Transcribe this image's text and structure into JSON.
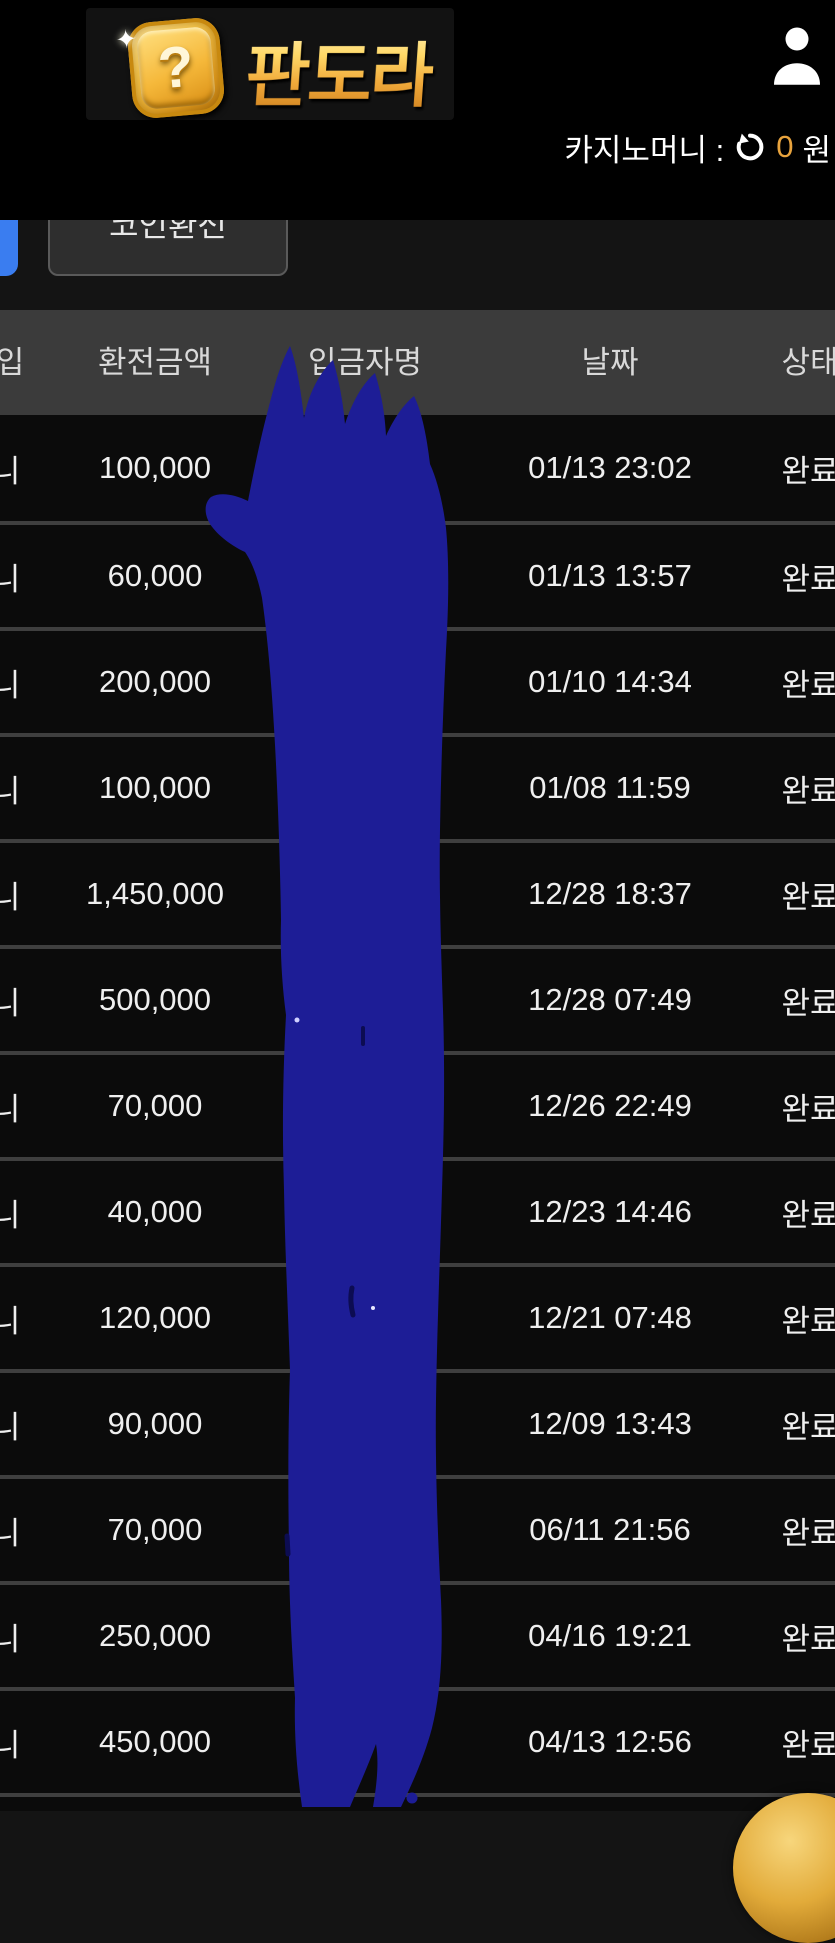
{
  "header": {
    "logo_text": "판도라",
    "logo_question_mark": "?",
    "balance": {
      "label": "카지노머니 :",
      "value": "0",
      "unit": "원"
    }
  },
  "toolbar": {
    "exchange_button_label": "코인환전"
  },
  "table": {
    "columns": {
      "type": "입",
      "amount": "환전금액",
      "depositor": "입금자명",
      "date": "날짜",
      "status": "상태"
    },
    "rows": [
      {
        "type": "니",
        "amount": "100,000",
        "depositor": "",
        "date": "01/13 23:02",
        "status": "완료"
      },
      {
        "type": "니",
        "amount": "60,000",
        "depositor": "",
        "date": "01/13 13:57",
        "status": "완료"
      },
      {
        "type": "니",
        "amount": "200,000",
        "depositor": "",
        "date": "01/10 14:34",
        "status": "완료"
      },
      {
        "type": "니",
        "amount": "100,000",
        "depositor": "",
        "date": "01/08 11:59",
        "status": "완료"
      },
      {
        "type": "니",
        "amount": "1,450,000",
        "depositor": "",
        "date": "12/28 18:37",
        "status": "완료"
      },
      {
        "type": "니",
        "amount": "500,000",
        "depositor": "",
        "date": "12/28 07:49",
        "status": "완료"
      },
      {
        "type": "니",
        "amount": "70,000",
        "depositor": "",
        "date": "12/26 22:49",
        "status": "완료"
      },
      {
        "type": "니",
        "amount": "40,000",
        "depositor": "",
        "date": "12/23 14:46",
        "status": "완료"
      },
      {
        "type": "니",
        "amount": "120,000",
        "depositor": "",
        "date": "12/21 07:48",
        "status": "완료"
      },
      {
        "type": "니",
        "amount": "90,000",
        "depositor": "",
        "date": "12/09 13:43",
        "status": "완료"
      },
      {
        "type": "니",
        "amount": "70,000",
        "depositor": "",
        "date": "06/11 21:56",
        "status": "완료"
      },
      {
        "type": "니",
        "amount": "250,000",
        "depositor": "",
        "date": "04/16 19:21",
        "status": "완료"
      },
      {
        "type": "니",
        "amount": "450,000",
        "depositor": "",
        "date": "04/13 12:56",
        "status": "완료"
      }
    ]
  },
  "colors": {
    "accent_blue": "#3a7df0",
    "redaction_blue": "#1d1d96",
    "balance_value_orange": "#e8a33d",
    "gold": "#e2ab3a",
    "table_header_bg": "#3b3b3b",
    "row_bg": "#0b0b0b"
  }
}
